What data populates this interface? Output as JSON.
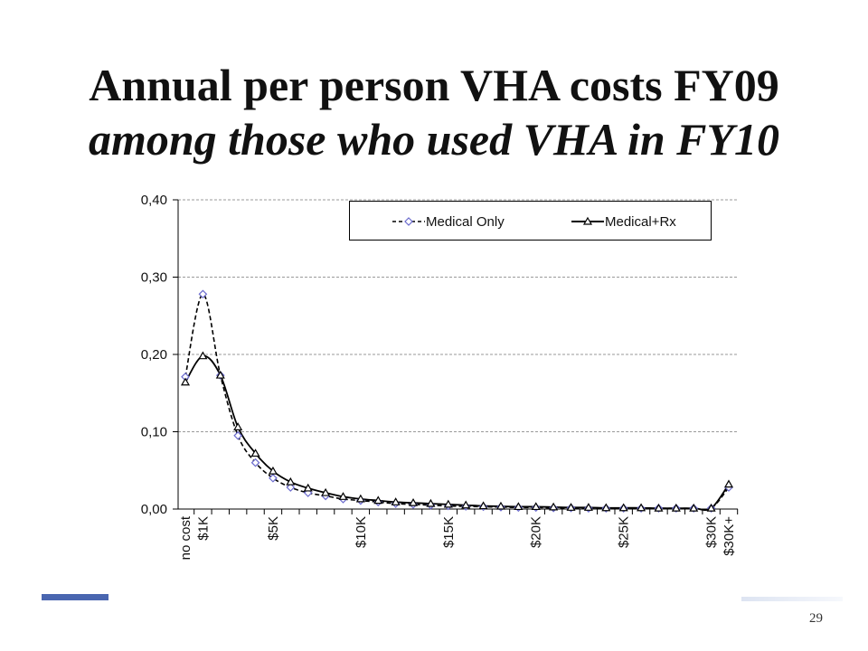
{
  "slide": {
    "title_line1": "Annual per person VHA costs FY09",
    "title_line2": "among those who used VHA in FY10",
    "page_number": "29"
  },
  "colors": {
    "series_marker_medical_only": "#6a6acd",
    "series_marker_medical_rx": "#000000",
    "accent_bar": "#4a66b0"
  },
  "chart_data": {
    "type": "line",
    "ylim": [
      0,
      0.4
    ],
    "yticks": [
      "0,00",
      "0,10",
      "0,20",
      "0,30",
      "0,40"
    ],
    "ytick_values": [
      0,
      0.1,
      0.2,
      0.3,
      0.4
    ],
    "grid": "horizontal-dashed",
    "legend_position": "top-right",
    "x_labels": [
      {
        "label": "no cost",
        "index": 0
      },
      {
        "label": "$1K",
        "index": 1
      },
      {
        "label": "$5K",
        "index": 5
      },
      {
        "label": "$10K",
        "index": 10
      },
      {
        "label": "$15K",
        "index": 15
      },
      {
        "label": "$20K",
        "index": 20
      },
      {
        "label": "$25K",
        "index": 25
      },
      {
        "label": "$30K",
        "index": 30
      },
      {
        "label": "$30K+",
        "index": 31
      }
    ],
    "series": [
      {
        "name": "Medical Only",
        "style": "dashed",
        "marker": "diamond",
        "values": [
          0.171,
          0.278,
          0.173,
          0.095,
          0.06,
          0.04,
          0.028,
          0.021,
          0.017,
          0.013,
          0.011,
          0.009,
          0.007,
          0.006,
          0.005,
          0.004,
          0.0035,
          0.003,
          0.0025,
          0.002,
          0.002,
          0.0015,
          0.0015,
          0.001,
          0.001,
          0.001,
          0.001,
          0.001,
          0.001,
          0.001,
          0.001,
          0.028
        ]
      },
      {
        "name": "Medical+Rx",
        "style": "solid",
        "marker": "triangle",
        "values": [
          0.164,
          0.198,
          0.173,
          0.106,
          0.072,
          0.049,
          0.035,
          0.027,
          0.021,
          0.016,
          0.013,
          0.011,
          0.009,
          0.008,
          0.007,
          0.006,
          0.005,
          0.004,
          0.0035,
          0.003,
          0.003,
          0.0025,
          0.002,
          0.002,
          0.0015,
          0.0015,
          0.0015,
          0.001,
          0.001,
          0.001,
          0.001,
          0.032
        ]
      }
    ]
  }
}
